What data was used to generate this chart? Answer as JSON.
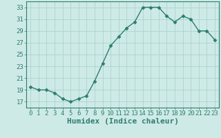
{
  "x": [
    0,
    1,
    2,
    3,
    4,
    5,
    6,
    7,
    8,
    9,
    10,
    11,
    12,
    13,
    14,
    15,
    16,
    17,
    18,
    19,
    20,
    21,
    22,
    23
  ],
  "y": [
    19.5,
    19.0,
    19.0,
    18.5,
    17.5,
    17.0,
    17.5,
    18.0,
    20.5,
    23.5,
    26.5,
    28.0,
    29.5,
    30.5,
    33.0,
    33.0,
    33.0,
    31.5,
    30.5,
    31.5,
    31.0,
    29.0,
    29.0,
    27.5
  ],
  "line_color": "#2d7d6e",
  "marker": "D",
  "markersize": 2.5,
  "linewidth": 1.0,
  "bg_color": "#ceeae7",
  "grid_color": "#aad4cf",
  "xlabel": "Humidex (Indice chaleur)",
  "xlabel_fontsize": 8,
  "ylim": [
    16,
    34
  ],
  "xlim": [
    -0.5,
    23.5
  ],
  "yticks": [
    17,
    19,
    21,
    23,
    25,
    27,
    29,
    31,
    33
  ],
  "xticks": [
    0,
    1,
    2,
    3,
    4,
    5,
    6,
    7,
    8,
    9,
    10,
    11,
    12,
    13,
    14,
    15,
    16,
    17,
    18,
    19,
    20,
    21,
    22,
    23
  ],
  "tick_fontsize": 6.5,
  "tick_color": "#2d7d6e",
  "spine_color": "#2d7d6e"
}
